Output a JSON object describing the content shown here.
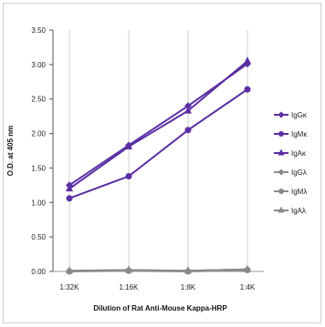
{
  "chart_data": {
    "type": "line",
    "title": "",
    "xlabel": "Dilution of Rat Anti-Mouse Kappa-HRP",
    "ylabel": "O.D. at 405 nm",
    "categories": [
      "1:32K",
      "1:16K",
      "1:8K",
      "1:4K"
    ],
    "ylim": [
      0,
      3.5
    ],
    "yticks": [
      "0.00",
      "0.50",
      "1.00",
      "1.50",
      "2.00",
      "2.50",
      "3.00",
      "3.50"
    ],
    "grid": "vertical",
    "legend_position": "right",
    "series": [
      {
        "name": "IgGκ",
        "values": [
          1.25,
          1.83,
          2.4,
          3.01
        ],
        "color": "#5b2fa3",
        "marker": "diamond"
      },
      {
        "name": "IgMκ",
        "values": [
          1.06,
          1.38,
          2.05,
          2.64
        ],
        "color": "#5b2fa3",
        "marker": "circle"
      },
      {
        "name": "IgAκ",
        "values": [
          1.2,
          1.81,
          2.33,
          3.05
        ],
        "color": "#5b2fa3",
        "marker": "triangle"
      },
      {
        "name": "IgGλ",
        "values": [
          0.01,
          0.02,
          0.01,
          0.03
        ],
        "color": "#8a8a8a",
        "marker": "diamond"
      },
      {
        "name": "IgMλ",
        "values": [
          0.0,
          0.01,
          0.0,
          0.02
        ],
        "color": "#8a8a8a",
        "marker": "circle"
      },
      {
        "name": "IgAλ",
        "values": [
          0.01,
          0.02,
          0.01,
          0.03
        ],
        "color": "#8a8a8a",
        "marker": "triangle"
      }
    ]
  }
}
